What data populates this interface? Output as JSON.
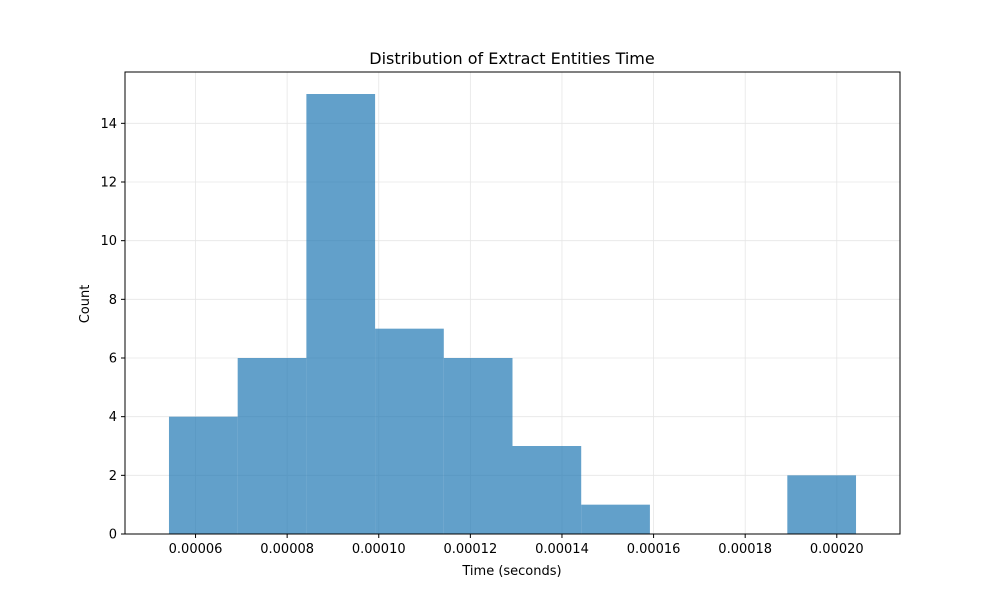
{
  "chart_data": {
    "type": "bar",
    "subtype": "histogram",
    "title": "Distribution of Extract Entities Time",
    "xlabel": "Time (seconds)",
    "ylabel": "Count",
    "bin_edges": [
      5.42e-05,
      6.92e-05,
      8.42e-05,
      9.92e-05,
      0.0001142,
      0.0001292,
      0.0001442,
      0.0001592,
      0.0001742,
      0.0001892,
      0.0002042
    ],
    "counts": [
      4,
      6,
      15,
      7,
      6,
      3,
      1,
      0,
      0,
      2
    ],
    "xlim": [
      4.46e-05,
      0.0002138
    ],
    "ylim": [
      0,
      15.75
    ],
    "xticks": [
      6e-05,
      8e-05,
      0.0001,
      0.00012,
      0.00014,
      0.00016,
      0.00018,
      0.0002
    ],
    "xtick_labels": [
      "0.00006",
      "0.00008",
      "0.00010",
      "0.00012",
      "0.00014",
      "0.00016",
      "0.00018",
      "0.00020"
    ],
    "yticks": [
      0,
      2,
      4,
      6,
      8,
      10,
      12,
      14
    ],
    "ytick_labels": [
      "0",
      "2",
      "4",
      "6",
      "8",
      "10",
      "12",
      "14"
    ],
    "grid": true,
    "legend": false,
    "colors": {
      "bar": "#1f77b4",
      "bar_opacity": 0.7,
      "grid": "#e6e6e6",
      "axis": "#000000"
    }
  }
}
